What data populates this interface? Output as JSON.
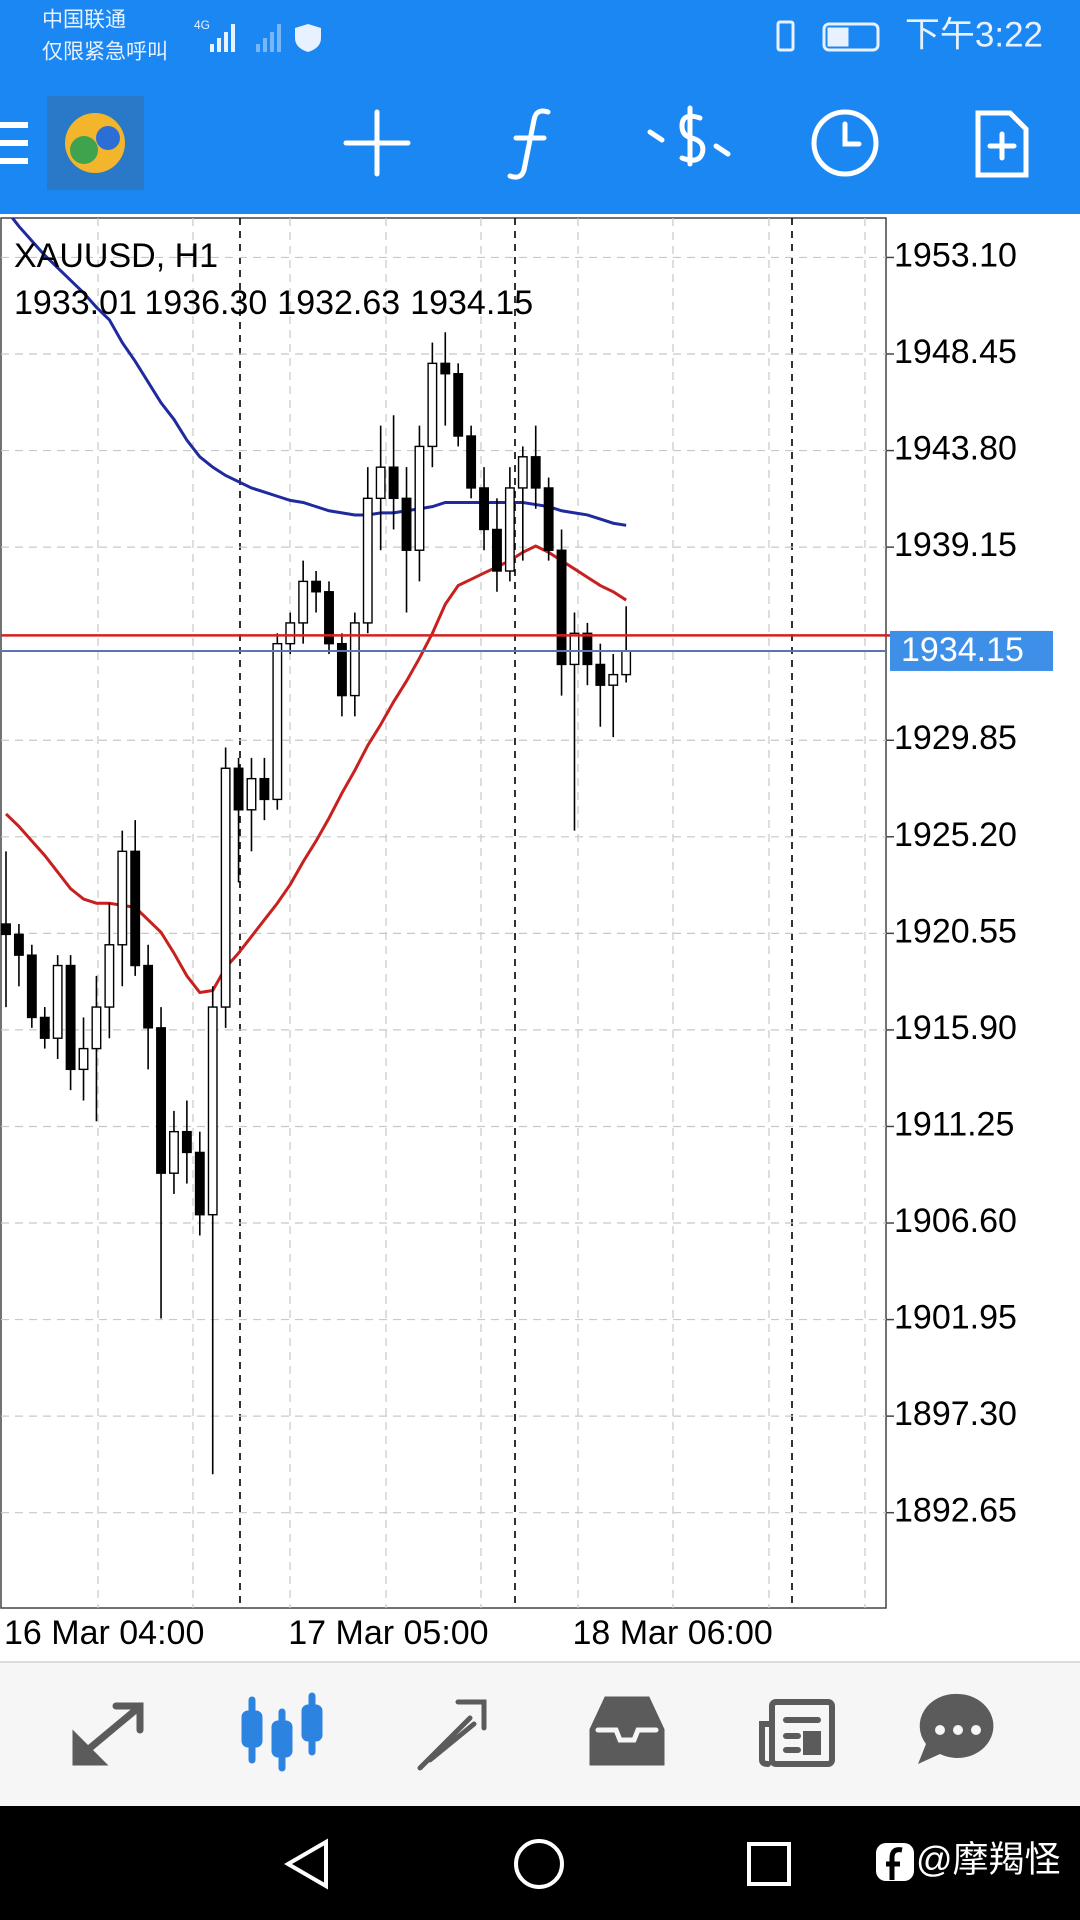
{
  "status_bar": {
    "carrier": "中国联通",
    "carrier_note": "仅限紧急呼叫",
    "network": "4G",
    "time": "下午3:22"
  },
  "chart_data": {
    "type": "candlestick",
    "title": "XAUUSD, H1",
    "ohlc_labels": [
      "1933.01",
      "1936.30",
      "1932.63",
      "1934.15"
    ],
    "categories": [
      "16 Mar 04:00",
      null,
      null,
      null,
      null,
      null,
      null,
      null,
      null,
      null,
      null,
      null,
      null,
      null,
      null,
      null,
      null,
      null,
      null,
      null,
      null,
      null,
      "17 Mar 05:00",
      null,
      null,
      null,
      null,
      null,
      null,
      null,
      null,
      null,
      null,
      null,
      null,
      null,
      null,
      null,
      null,
      null,
      null,
      null,
      null,
      null,
      "18 Mar 06:00",
      null,
      null,
      null,
      null
    ],
    "open": [
      1921,
      1920.5,
      1919.5,
      1916.5,
      1915.5,
      1919,
      1914,
      1915,
      1917,
      1920,
      1924.5,
      1919,
      1916,
      1909,
      1911,
      1910,
      1907,
      1917,
      1928.5,
      1926.5,
      1928,
      1927,
      1934.5,
      1935.5,
      1937.5,
      1937,
      1934.5,
      1932,
      1935.5,
      1941.5,
      1943,
      1941.5,
      1939,
      1944,
      1948,
      1947.5,
      1944.5,
      1942,
      1940,
      1938,
      1942,
      1943.5,
      1942,
      1939,
      1933.5,
      1935,
      1933.5,
      1932.5,
      1933.01
    ],
    "high": [
      1924.5,
      1921,
      1920,
      1917,
      1919.5,
      1919.5,
      1916.5,
      1918.5,
      1922,
      1925.5,
      1926,
      1920,
      1917,
      1912,
      1912.5,
      1911,
      1918,
      1929.5,
      1929,
      1929,
      1929,
      1935,
      1936,
      1938.5,
      1938,
      1937.5,
      1935,
      1936,
      1943,
      1945,
      1945.5,
      1943,
      1945,
      1949,
      1949.5,
      1948,
      1945,
      1943,
      1941.5,
      1943,
      1944,
      1945,
      1942.5,
      1940,
      1936,
      1935.5,
      1934.5,
      1934,
      1936.3
    ],
    "low": [
      1917,
      1918,
      1916,
      1915,
      1914.5,
      1913,
      1912.5,
      1911.5,
      1915.5,
      1918,
      1918.5,
      1914,
      1902,
      1908,
      1908.5,
      1906,
      1894.5,
      1916,
      1923,
      1924.5,
      1926,
      1926.5,
      1934,
      1934.5,
      1936,
      1934,
      1931,
      1931,
      1935,
      1939,
      1940,
      1936,
      1937.5,
      1943,
      1945,
      1944,
      1941.5,
      1939,
      1937,
      1937.5,
      1938.5,
      1941,
      1938.5,
      1932,
      1925.5,
      1932.5,
      1930.5,
      1930,
      1932.63
    ],
    "close": [
      1920.5,
      1919.5,
      1916.5,
      1915.5,
      1919,
      1914,
      1915,
      1917,
      1920,
      1924.5,
      1919,
      1916,
      1909,
      1911,
      1910,
      1907,
      1917,
      1928.5,
      1926.5,
      1928,
      1927,
      1934.5,
      1935.5,
      1937.5,
      1937,
      1934.5,
      1932,
      1935.5,
      1941.5,
      1943,
      1941.5,
      1939,
      1944,
      1948,
      1947.5,
      1944.5,
      1942,
      1940,
      1938,
      1942,
      1943.5,
      1942,
      1939,
      1933.5,
      1935,
      1933.5,
      1932.5,
      1933.01,
      1934.15
    ],
    "moving_averages": [
      {
        "color": "#1f2a9e",
        "values": [
          1955.4,
          1954.6,
          1953.9,
          1953.2,
          1952.6,
          1952.0,
          1951.4,
          1950.7,
          1950.1,
          1949.0,
          1948.1,
          1947.1,
          1946.1,
          1945.3,
          1944.3,
          1943.5,
          1943.0,
          1942.6,
          1942.3,
          1942.0,
          1941.8,
          1941.6,
          1941.4,
          1941.3,
          1941.1,
          1940.9,
          1940.8,
          1940.7,
          1940.7,
          1940.8,
          1940.8,
          1940.9,
          1941.0,
          1941.1,
          1941.3,
          1941.3,
          1941.3,
          1941.3,
          1941.3,
          1941.3,
          1941.3,
          1941.2,
          1941.1,
          1940.9,
          1940.8,
          1940.7,
          1940.5,
          1940.3,
          1940.2
        ]
      },
      {
        "color": "#c8201e",
        "values": [
          1926.3,
          1925.7,
          1925.0,
          1924.3,
          1923.5,
          1922.7,
          1922.2,
          1922.0,
          1922.0,
          1921.9,
          1921.8,
          1921.2,
          1920.6,
          1919.6,
          1918.5,
          1917.7,
          1917.8,
          1918.9,
          1919.6,
          1920.4,
          1921.2,
          1922.0,
          1922.9,
          1924.0,
          1925.0,
          1926.1,
          1927.3,
          1928.4,
          1929.6,
          1930.6,
          1931.7,
          1932.7,
          1933.8,
          1935.0,
          1936.4,
          1937.3,
          1937.6,
          1937.9,
          1938.2,
          1938.5,
          1938.9,
          1939.2,
          1938.9,
          1938.5,
          1938.1,
          1937.7,
          1937.3,
          1937.0,
          1936.6
        ]
      }
    ],
    "current_price": 1934.15,
    "ask_price": 1934.9,
    "ylim": [
      1888.06,
      1955.0
    ],
    "yticks": [
      {
        "value": 1953.1,
        "label": "1953.10"
      },
      1948.45,
      {
        "value": 1943.8,
        "label": "1943.80"
      },
      1939.15,
      1929.85,
      {
        "value": 1925.2,
        "label": "1925.20"
      },
      1920.55,
      {
        "value": 1915.9,
        "label": "1915.90"
      },
      1911.25,
      {
        "value": 1906.6,
        "label": "1906.60"
      },
      1901.95,
      {
        "value": 1897.3,
        "label": "1897.30"
      },
      1892.65
    ],
    "grid": true,
    "bull_color": "#ffffff",
    "bear_color": "#000000",
    "price_color": "#3d8fe8"
  },
  "watermark": "@摩羯怪"
}
